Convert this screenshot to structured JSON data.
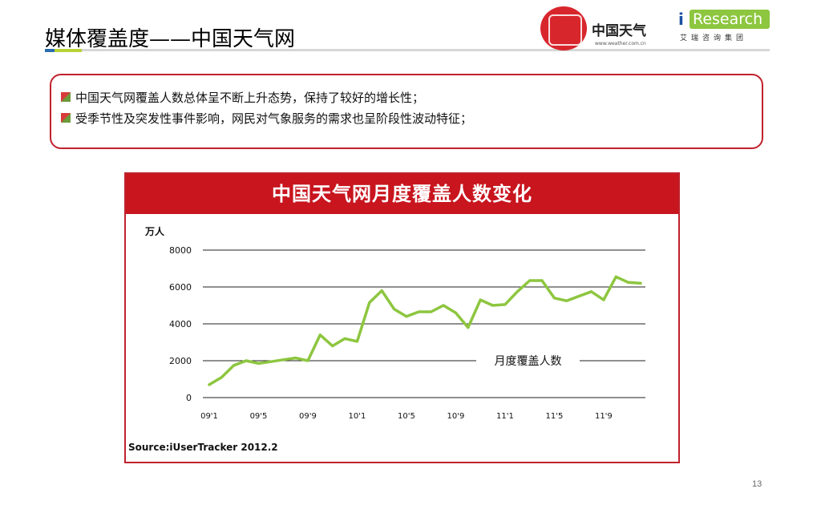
{
  "header": {
    "title": "媒体覆盖度——中国天气网",
    "weather_logo_name": "中国天气",
    "weather_logo_url": "www.weather.com.cn",
    "ir_logo_i": "i",
    "ir_logo_text": "Research",
    "ir_logo_sub": "艾瑞咨询集团"
  },
  "bullets": [
    "中国天气网覆盖人数总体呈不断上升态势，保持了较好的增长性；",
    "受季节性及突发性事件影响，网民对气象服务的需求也呈阶段性波动特征；"
  ],
  "chart_data": {
    "type": "line",
    "title": "中国天气网月度覆盖人数变化",
    "ylabel": "万人",
    "xlabel": "",
    "ylim": [
      0,
      8000
    ],
    "yticks": [
      0,
      2000,
      4000,
      6000,
      8000
    ],
    "x_tick_labels": [
      "09'1",
      "09'5",
      "09'9",
      "10'1",
      "10'5",
      "10'9",
      "11'1",
      "11'5",
      "11'9"
    ],
    "x": [
      "09'1",
      "09'2",
      "09'3",
      "09'4",
      "09'5",
      "09'6",
      "09'7",
      "09'8",
      "09'9",
      "09'10",
      "09'11",
      "09'12",
      "10'1",
      "10'2",
      "10'3",
      "10'4",
      "10'5",
      "10'6",
      "10'7",
      "10'8",
      "10'9",
      "10'10",
      "10'11",
      "10'12",
      "11'1",
      "11'2",
      "11'3",
      "11'4",
      "11'5",
      "11'6",
      "11'7",
      "11'8",
      "11'9",
      "11'10",
      "11'11",
      "11'12"
    ],
    "series": [
      {
        "name": "月度覆盖人数",
        "color": "#8dc63f",
        "values": [
          700,
          1100,
          1750,
          2000,
          1850,
          1950,
          2050,
          2150,
          2000,
          3400,
          2800,
          3200,
          3050,
          5150,
          5800,
          4800,
          4400,
          4650,
          4650,
          5000,
          4600,
          3800,
          5300,
          5000,
          5050,
          5750,
          6350,
          6350,
          5400,
          5250,
          5500,
          5750,
          5300,
          6550,
          6250,
          6200
        ]
      }
    ],
    "grid": true,
    "legend_placement": "inline-bottom-right",
    "source": "Source:iUserTracker 2012.2"
  },
  "page_number": "13"
}
